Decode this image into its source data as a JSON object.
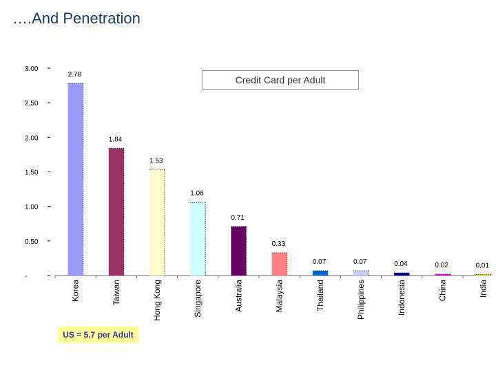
{
  "slide_title": "….And Penetration",
  "note": "US = 5.7 per Adult",
  "chart_data": {
    "type": "bar",
    "title": "Credit Card per Adult",
    "xlabel": "",
    "ylabel": "",
    "ylim": [
      0,
      3
    ],
    "y_ticks": [
      "-",
      "0.50",
      "1.00",
      "1.50",
      "2.00",
      "2.50",
      "3.00"
    ],
    "categories": [
      "Korea",
      "Taiwan",
      "Hong Kong",
      "Singapore",
      "Australia",
      "Malaysia",
      "Thailand",
      "Philippines",
      "Indonesia",
      "China",
      "India"
    ],
    "values": [
      2.78,
      1.84,
      1.53,
      1.06,
      0.71,
      0.33,
      0.07,
      0.07,
      0.04,
      0.02,
      0.01
    ],
    "value_labels": [
      "2.78",
      "1.84",
      "1.53",
      "1.06",
      "0.71",
      "0.33",
      "0.07",
      "0.07",
      "0.04",
      "0.02",
      "0.01"
    ],
    "colors": [
      "#9999ff",
      "#993366",
      "#ffffcc",
      "#ccffff",
      "#660066",
      "#ff8080",
      "#0066cc",
      "#ccccff",
      "#000080",
      "#ff00ff",
      "#ffff00"
    ]
  }
}
